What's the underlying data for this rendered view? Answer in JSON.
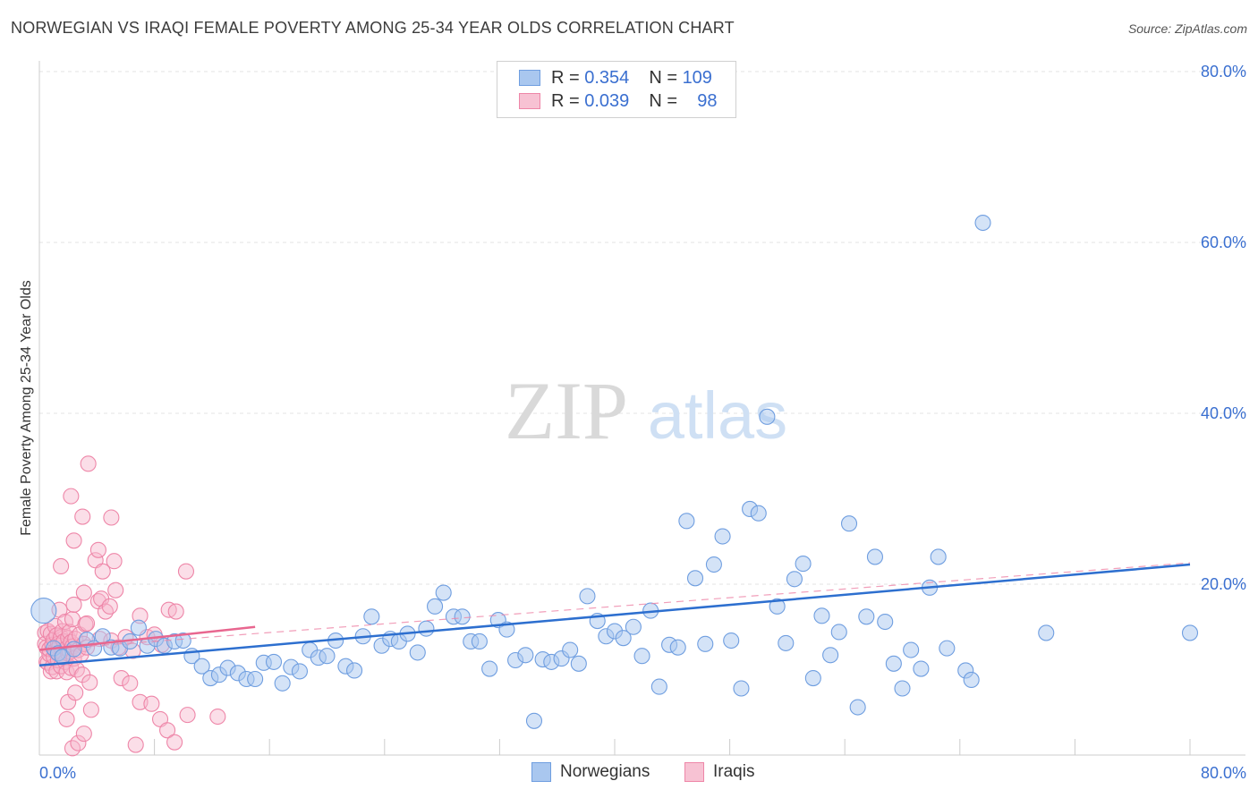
{
  "title": "NORWEGIAN VS IRAQI FEMALE POVERTY AMONG 25-34 YEAR OLDS CORRELATION CHART",
  "source": "Source: ZipAtlas.com",
  "watermark": {
    "zip": "ZIP",
    "atlas": "atlas"
  },
  "legend": {
    "rows": [
      {
        "r_label": "R =",
        "r_value": "0.354",
        "n_label": "N =",
        "n_value": "109"
      },
      {
        "r_label": "R =",
        "r_value": "0.039",
        "n_label": "N =",
        "n_value": "98"
      }
    ],
    "bottom": [
      "Norwegians",
      "Iraqis"
    ]
  },
  "colors": {
    "blue_fill": "#a9c7ef",
    "blue_stroke": "#6f9ee0",
    "blue_line": "#2d6fcf",
    "pink_fill": "#f7b6cb",
    "pink_stroke": "#ee86a8",
    "pink_line": "#e8668f",
    "axis_text": "#3a6fd0",
    "grid": "#e3e3e3"
  },
  "chart_data": {
    "type": "scatter",
    "title": "NORWEGIAN VS IRAQI FEMALE POVERTY AMONG 25-34 YEAR OLDS CORRELATION CHART",
    "xlabel": "",
    "ylabel": "Female Poverty Among 25-34 Year Olds",
    "xlim": [
      0,
      80
    ],
    "ylim": [
      0,
      80
    ],
    "x_tick_labels": [
      "0.0%",
      "80.0%"
    ],
    "y_ticks": [
      20,
      40,
      60,
      80
    ],
    "y_tick_labels": [
      "20.0%",
      "40.0%",
      "60.0%",
      "80.0%"
    ],
    "series": [
      {
        "name": "Norwegians",
        "r": 0.354,
        "n": 109,
        "trend": {
          "x": [
            0,
            80
          ],
          "y": [
            10.5,
            22.3
          ]
        },
        "points": [
          [
            0.3,
            16.9
          ],
          [
            1.0,
            12.5
          ],
          [
            1.3,
            11.9
          ],
          [
            1.6,
            11.5
          ],
          [
            2.4,
            12.4
          ],
          [
            3.3,
            13.5
          ],
          [
            3.8,
            12.5
          ],
          [
            4.4,
            13.9
          ],
          [
            5.0,
            12.6
          ],
          [
            5.6,
            12.5
          ],
          [
            6.3,
            13.3
          ],
          [
            6.9,
            14.9
          ],
          [
            7.5,
            12.8
          ],
          [
            8.1,
            13.6
          ],
          [
            8.7,
            12.8
          ],
          [
            9.4,
            13.3
          ],
          [
            10.0,
            13.4
          ],
          [
            10.6,
            11.6
          ],
          [
            11.3,
            10.4
          ],
          [
            11.9,
            9.0
          ],
          [
            12.5,
            9.4
          ],
          [
            13.1,
            10.2
          ],
          [
            13.8,
            9.6
          ],
          [
            14.4,
            8.9
          ],
          [
            15.0,
            8.9
          ],
          [
            15.6,
            10.8
          ],
          [
            16.3,
            10.9
          ],
          [
            16.9,
            8.4
          ],
          [
            17.5,
            10.3
          ],
          [
            18.1,
            9.8
          ],
          [
            18.8,
            12.3
          ],
          [
            19.4,
            11.4
          ],
          [
            20.0,
            11.6
          ],
          [
            20.6,
            13.4
          ],
          [
            21.3,
            10.4
          ],
          [
            21.9,
            9.9
          ],
          [
            22.5,
            13.9
          ],
          [
            23.1,
            16.2
          ],
          [
            23.8,
            12.8
          ],
          [
            24.4,
            13.6
          ],
          [
            25.0,
            13.3
          ],
          [
            25.6,
            14.2
          ],
          [
            26.3,
            12.0
          ],
          [
            26.9,
            14.8
          ],
          [
            27.5,
            17.4
          ],
          [
            28.1,
            19.0
          ],
          [
            28.8,
            16.2
          ],
          [
            29.4,
            16.2
          ],
          [
            30.0,
            13.3
          ],
          [
            30.6,
            13.3
          ],
          [
            31.3,
            10.1
          ],
          [
            31.9,
            15.8
          ],
          [
            32.5,
            14.7
          ],
          [
            33.1,
            11.1
          ],
          [
            33.8,
            11.7
          ],
          [
            34.4,
            4.0
          ],
          [
            35.0,
            11.2
          ],
          [
            35.6,
            10.9
          ],
          [
            36.3,
            11.3
          ],
          [
            36.9,
            12.3
          ],
          [
            37.5,
            10.7
          ],
          [
            38.1,
            18.6
          ],
          [
            38.8,
            15.7
          ],
          [
            39.4,
            13.9
          ],
          [
            40.0,
            14.5
          ],
          [
            40.6,
            13.7
          ],
          [
            41.3,
            15.0
          ],
          [
            41.9,
            11.6
          ],
          [
            42.5,
            16.9
          ],
          [
            43.1,
            8.0
          ],
          [
            43.8,
            12.9
          ],
          [
            44.4,
            12.6
          ],
          [
            45.0,
            27.4
          ],
          [
            45.6,
            20.7
          ],
          [
            46.3,
            13.0
          ],
          [
            46.9,
            22.3
          ],
          [
            47.5,
            25.6
          ],
          [
            48.1,
            13.4
          ],
          [
            48.8,
            7.8
          ],
          [
            49.4,
            28.8
          ],
          [
            50.0,
            28.3
          ],
          [
            50.6,
            39.6
          ],
          [
            51.3,
            17.4
          ],
          [
            51.9,
            13.1
          ],
          [
            52.5,
            20.6
          ],
          [
            53.1,
            22.4
          ],
          [
            53.8,
            9.0
          ],
          [
            54.4,
            16.3
          ],
          [
            55.0,
            11.7
          ],
          [
            55.6,
            14.4
          ],
          [
            56.3,
            27.1
          ],
          [
            56.9,
            5.6
          ],
          [
            57.5,
            16.2
          ],
          [
            58.1,
            23.2
          ],
          [
            58.8,
            15.6
          ],
          [
            59.4,
            10.7
          ],
          [
            60.0,
            7.8
          ],
          [
            60.6,
            12.3
          ],
          [
            61.3,
            10.1
          ],
          [
            61.9,
            19.6
          ],
          [
            62.5,
            23.2
          ],
          [
            63.1,
            12.5
          ],
          [
            64.4,
            9.9
          ],
          [
            64.8,
            8.8
          ],
          [
            70.0,
            14.3
          ],
          [
            80.0,
            14.3
          ],
          [
            65.6,
            62.3
          ]
        ]
      },
      {
        "name": "Iraqis",
        "r": 0.039,
        "n": 98,
        "trend": {
          "x": [
            0,
            15
          ],
          "y": [
            12.3,
            15.0
          ]
        },
        "trend_extended": {
          "x": [
            0,
            80
          ],
          "y": [
            12.3,
            22.5
          ]
        },
        "points": [
          [
            0.4,
            14.3
          ],
          [
            0.4,
            13.0
          ],
          [
            0.5,
            10.9
          ],
          [
            0.5,
            12.6
          ],
          [
            0.6,
            10.8
          ],
          [
            0.6,
            14.5
          ],
          [
            0.7,
            11.8
          ],
          [
            0.7,
            12.4
          ],
          [
            0.8,
            9.8
          ],
          [
            0.8,
            14.2
          ],
          [
            0.9,
            10.3
          ],
          [
            0.9,
            12.9
          ],
          [
            1.0,
            13.5
          ],
          [
            1.0,
            11.5
          ],
          [
            1.1,
            15.1
          ],
          [
            1.1,
            12.2
          ],
          [
            1.2,
            9.8
          ],
          [
            1.2,
            14.0
          ],
          [
            1.3,
            13.0
          ],
          [
            1.3,
            11.1
          ],
          [
            1.4,
            17.0
          ],
          [
            1.4,
            12.8
          ],
          [
            1.5,
            10.4
          ],
          [
            1.5,
            13.8
          ],
          [
            1.6,
            12.0
          ],
          [
            1.6,
            14.5
          ],
          [
            1.7,
            11.4
          ],
          [
            1.7,
            13.3
          ],
          [
            1.8,
            10.9
          ],
          [
            1.8,
            15.6
          ],
          [
            1.9,
            12.5
          ],
          [
            1.9,
            9.7
          ],
          [
            2.0,
            13.7
          ],
          [
            2.0,
            11.9
          ],
          [
            2.1,
            14.4
          ],
          [
            2.1,
            12.1
          ],
          [
            2.2,
            10.2
          ],
          [
            2.2,
            13.2
          ],
          [
            2.3,
            15.9
          ],
          [
            2.3,
            12.7
          ],
          [
            2.4,
            11.3
          ],
          [
            2.5,
            13.6
          ],
          [
            2.6,
            10.0
          ],
          [
            2.7,
            12.3
          ],
          [
            2.8,
            14.1
          ],
          [
            2.9,
            11.8
          ],
          [
            3.0,
            9.4
          ],
          [
            3.1,
            13.0
          ],
          [
            3.2,
            15.3
          ],
          [
            3.3,
            12.6
          ],
          [
            1.9,
            4.2
          ],
          [
            2.3,
            0.8
          ],
          [
            2.7,
            1.4
          ],
          [
            3.1,
            2.5
          ],
          [
            2.0,
            6.2
          ],
          [
            3.6,
            5.3
          ],
          [
            2.5,
            7.3
          ],
          [
            3.5,
            8.5
          ],
          [
            1.5,
            22.1
          ],
          [
            2.2,
            30.3
          ],
          [
            2.4,
            25.1
          ],
          [
            3.0,
            27.9
          ],
          [
            3.4,
            34.1
          ],
          [
            3.9,
            22.8
          ],
          [
            4.1,
            24.0
          ],
          [
            4.4,
            21.5
          ],
          [
            5.0,
            27.8
          ],
          [
            5.2,
            22.7
          ],
          [
            5.3,
            19.3
          ],
          [
            2.4,
            17.6
          ],
          [
            4.1,
            18.0
          ],
          [
            4.3,
            18.3
          ],
          [
            3.1,
            19.0
          ],
          [
            4.6,
            16.8
          ],
          [
            4.9,
            17.4
          ],
          [
            3.3,
            15.4
          ],
          [
            4.2,
            13.6
          ],
          [
            5.0,
            13.4
          ],
          [
            5.5,
            12.6
          ],
          [
            6.0,
            13.8
          ],
          [
            6.5,
            12.2
          ],
          [
            7.0,
            16.3
          ],
          [
            7.5,
            13.8
          ],
          [
            8.0,
            14.1
          ],
          [
            8.5,
            12.9
          ],
          [
            9.0,
            17.0
          ],
          [
            9.5,
            16.8
          ],
          [
            10.2,
            21.5
          ],
          [
            5.7,
            9.0
          ],
          [
            6.3,
            8.4
          ],
          [
            7.0,
            6.2
          ],
          [
            7.8,
            6.0
          ],
          [
            8.4,
            4.2
          ],
          [
            8.9,
            2.9
          ],
          [
            9.4,
            1.5
          ],
          [
            10.3,
            4.7
          ],
          [
            12.4,
            4.5
          ],
          [
            6.7,
            1.2
          ]
        ]
      }
    ]
  }
}
